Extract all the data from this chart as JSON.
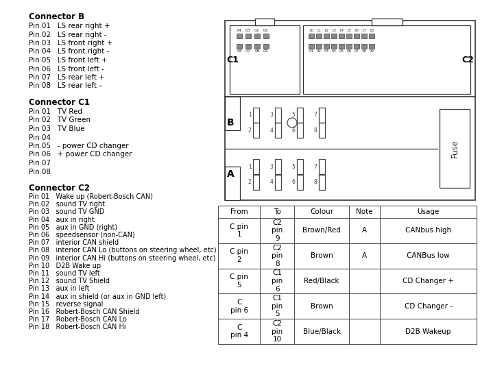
{
  "background_color": "#ffffff",
  "text_color": "#000000",
  "connector_b_title": "Connector B",
  "connector_b_pins": [
    "Pin 01   LS rear right +",
    "Pin 02   LS rear right -",
    "Pin 03   LS front right +",
    "Pin 04   LS front right -",
    "Pin 05   LS front left +",
    "Pin 06   LS front left -",
    "Pin 07   LS rear left +",
    "Pin 08   LS rear left –"
  ],
  "connector_c1_title": "Connector C1",
  "connector_c1_pins": [
    "Pin 01   TV Red",
    "Pin 02   TV Green",
    "Pin 03   TV Blue",
    "Pin 04",
    "Pin 05   - power CD changer",
    "Pin 06   + power CD changer",
    "Pin 07",
    "Pin 08"
  ],
  "connector_c2_title": "Connector C2",
  "connector_c2_pins": [
    "Pin 01   Wake up (Robert-Bosch CAN)",
    "Pin 02   sound TV right",
    "Pin 03   sound TV GND",
    "Pin 04   aux in right",
    "Pin 05   aux in GND (right)",
    "Pin 06   speedsensor (non-CAN)",
    "Pin 07   interior CAN shield",
    "Pin 08   interior CAN Lo (buttons on steering wheel, etc)",
    "Pin 09   interior CAN Hi (buttons on steering wheel, etc)",
    "Pin 10   D2B Wake up",
    "Pin 11   sound TV left",
    "Pin 12   sound TV Shield",
    "Pin 13   aux in left",
    "Pin 14   aux in shield (or aux in GND left)",
    "Pin 15   reverse signal",
    "Pin 16   Robert-Bosch CAN Shield",
    "Pin 17   Robert-Bosch CAN Lo",
    "Pin 18   Robert-Bosch CAN Hi"
  ],
  "table_headers": [
    "From",
    "To",
    "Colour",
    "Note",
    "Usage"
  ],
  "table_rows": [
    [
      "C pin\n1",
      "C2\npin\n9",
      "Brown/Red",
      "A",
      "CANbus high"
    ],
    [
      "C pin\n2",
      "C2\npin\n8",
      "Brown",
      "A",
      "CANBus low"
    ],
    [
      "C pin\n5",
      "C1\npin\n6",
      "Red/Black",
      "",
      "CD Changer +"
    ],
    [
      "C\npin 6",
      "C1\npin\n5",
      "Brown",
      "",
      "CD Changer -"
    ],
    [
      "C\npin 4",
      "C2\npin\n10",
      "Blue/Black",
      "",
      "D2B Wakeup"
    ]
  ]
}
